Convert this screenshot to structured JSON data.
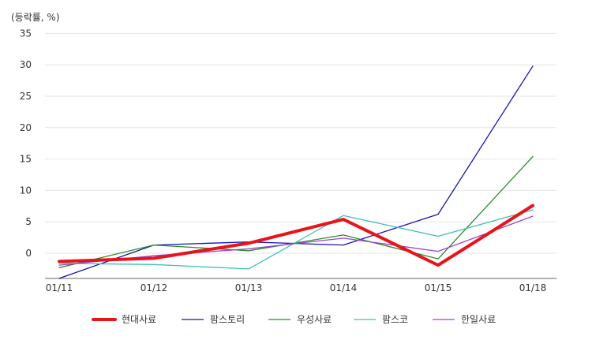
{
  "chart_data": {
    "type": "line",
    "unit_label": "(등락률, %)",
    "categories": [
      "01/11",
      "01/12",
      "01/13",
      "01/14",
      "01/15",
      "01/18"
    ],
    "ylim": [
      -4,
      35
    ],
    "yticks": [
      0,
      5,
      10,
      15,
      20,
      25,
      30,
      35
    ],
    "grid": true,
    "legend_position": "bottom",
    "series": [
      {
        "name": "현대사료",
        "color": "#e8141c",
        "values": [
          -1.3,
          -0.8,
          1.6,
          5.4,
          -1.9,
          7.6
        ],
        "highlight": true
      },
      {
        "name": "팜스토리",
        "color": "#1515b4",
        "values": [
          -4.0,
          1.3,
          1.8,
          1.3,
          6.2,
          29.8
        ]
      },
      {
        "name": "우성사료",
        "color": "#2a8a2a",
        "values": [
          -2.3,
          1.3,
          0.4,
          2.9,
          -0.9,
          15.4
        ]
      },
      {
        "name": "팜스코",
        "color": "#3cc1b8",
        "values": [
          -1.6,
          -1.8,
          -2.5,
          6.0,
          2.7,
          6.9
        ]
      },
      {
        "name": "한일사료",
        "color": "#a040d0",
        "values": [
          -1.9,
          -0.4,
          0.7,
          2.4,
          0.3,
          5.9
        ]
      }
    ]
  }
}
